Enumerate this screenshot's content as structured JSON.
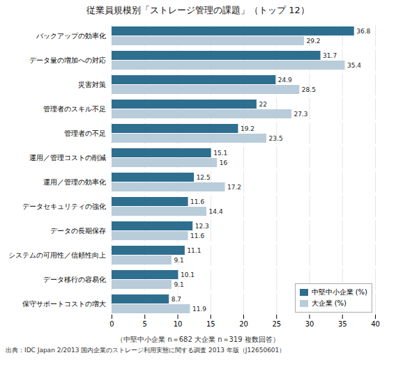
{
  "chart_data": {
    "type": "bar",
    "orientation": "horizontal",
    "title": "従業員規模別「ストレージ管理の課題」（トップ 12）",
    "notes": [
      "（中堅中小企業 n＝682 大企業 n＝319 複数回答）",
      "出典：IDC Japan 2/2013 国内企業のストレージ利用実態に関する調査 2013 年版（J12650601）"
    ],
    "categories": [
      "バックアップの効率化",
      "データ量の増加への対応",
      "災害対策",
      "管理者のスキル不足",
      "管理者の不足",
      "運用／管理コストの削減",
      "運用／管理の効率化",
      "データセキュリティの強化",
      "データの長期保存",
      "システムの可用性／信頼性向上",
      "データ移行の容易化",
      "保守サポートコストの増大"
    ],
    "series": [
      {
        "name": "中堅中小企業 (%)",
        "color": "#2E6E8E",
        "values": [
          36.8,
          31.7,
          24.9,
          22.0,
          19.2,
          15.1,
          12.5,
          11.6,
          12.3,
          11.1,
          10.1,
          8.7
        ]
      },
      {
        "name": "大企業 (%)",
        "color": "#B8CDD9",
        "values": [
          29.2,
          35.4,
          28.5,
          27.3,
          23.5,
          16.0,
          17.2,
          14.4,
          11.6,
          9.1,
          9.1,
          11.9
        ]
      }
    ],
    "xlim": [
      0,
      40
    ],
    "xticks": [
      0,
      5,
      10,
      15,
      20,
      25,
      30,
      35,
      40
    ],
    "grid": true,
    "legend": "lower right",
    "data_labels": true
  }
}
